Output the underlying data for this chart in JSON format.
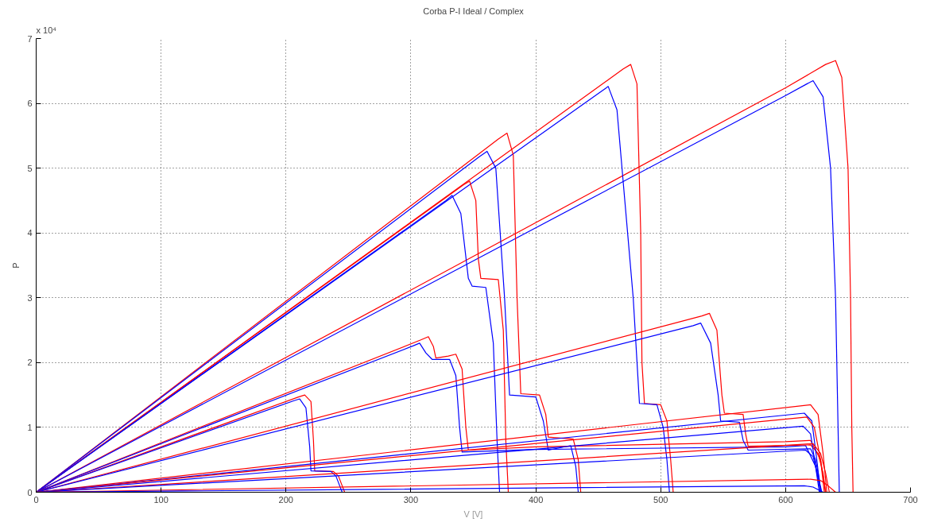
{
  "chart_data": {
    "type": "line",
    "title": "Corba P-I Ideal / Complex",
    "xlabel": "V [V]",
    "ylabel": "P",
    "annotations": [
      "x 10⁴"
    ],
    "xlim": [
      0,
      700
    ],
    "ylim": [
      0,
      7
    ],
    "xticks": [
      0,
      100,
      200,
      300,
      400,
      500,
      600,
      700
    ],
    "yticks": [
      0,
      1,
      2,
      3,
      4,
      5,
      6,
      7
    ],
    "grid": true,
    "marker": "none",
    "line_style": "solid",
    "series": [
      {
        "color": "#ff0000",
        "x": [
          0,
          600,
          632,
          640,
          645,
          650,
          652,
          653,
          654
        ],
        "values": [
          0,
          6.24,
          6.6,
          6.66,
          6.4,
          5,
          3,
          1,
          0
        ]
      },
      {
        "color": "#0000ff",
        "x": [
          0,
          600,
          617,
          622,
          630,
          636,
          640,
          643
        ],
        "values": [
          0,
          6.12,
          6.3,
          6.35,
          6.1,
          5,
          3,
          0
        ]
      },
      {
        "color": "#ff0000",
        "x": [
          0,
          470,
          476,
          481,
          484,
          485,
          487,
          500,
          505,
          508,
          510
        ],
        "values": [
          0,
          6.53,
          6.6,
          6.3,
          4,
          2,
          1.37,
          1.35,
          1.1,
          0.5,
          0
        ]
      },
      {
        "color": "#0000ff",
        "x": [
          0,
          452,
          458,
          465,
          478,
          483,
          497,
          502,
          505,
          507
        ],
        "values": [
          0,
          6.18,
          6.26,
          5.9,
          3,
          1.37,
          1.35,
          1.0,
          0.5,
          0
        ]
      },
      {
        "color": "#ff0000",
        "x": [
          0,
          370,
          377,
          382,
          385,
          388,
          403,
          408,
          410,
          430,
          434,
          436
        ],
        "values": [
          0,
          5.45,
          5.54,
          5.2,
          3,
          1.52,
          1.5,
          1.2,
          0.85,
          0.82,
          0.5,
          0
        ]
      },
      {
        "color": "#0000ff",
        "x": [
          0,
          355,
          361,
          368,
          375,
          379,
          400,
          406,
          410,
          428,
          432,
          434
        ],
        "values": [
          0,
          5.18,
          5.26,
          5.0,
          3,
          1.5,
          1.47,
          1.1,
          0.65,
          0.72,
          0.4,
          0
        ]
      },
      {
        "color": "#ff0000",
        "x": [
          0,
          342,
          347,
          352,
          354,
          356,
          370,
          374,
          376,
          378
        ],
        "values": [
          0,
          4.74,
          4.8,
          4.5,
          3.6,
          3.3,
          3.28,
          2.5,
          0.8,
          0
        ]
      },
      {
        "color": "#0000ff",
        "x": [
          0,
          328,
          333,
          340,
          346,
          349,
          360,
          366,
          369,
          371
        ],
        "values": [
          0,
          4.5,
          4.58,
          4.3,
          3.3,
          3.18,
          3.16,
          2.3,
          0.8,
          0
        ]
      },
      {
        "color": "#ff0000",
        "x": [
          0,
          308,
          314,
          318,
          320,
          330,
          336,
          341,
          344,
          346,
          400,
          600,
          620,
          628,
          632
        ],
        "values": [
          0,
          2.35,
          2.4,
          2.25,
          2.07,
          2.1,
          2.13,
          1.9,
          1.0,
          0.65,
          0.7,
          0.78,
          0.8,
          0.5,
          0
        ]
      },
      {
        "color": "#0000ff",
        "x": [
          0,
          302,
          307,
          312,
          317,
          331,
          336,
          339,
          341,
          400,
          600,
          616,
          624,
          628
        ],
        "values": [
          0,
          2.26,
          2.3,
          2.15,
          2.05,
          2.05,
          1.8,
          1.0,
          0.62,
          0.66,
          0.7,
          0.72,
          0.4,
          0
        ]
      },
      {
        "color": "#ff0000",
        "x": [
          0,
          210,
          215,
          220,
          222,
          223,
          238,
          242,
          245,
          247
        ],
        "values": [
          0,
          1.47,
          1.5,
          1.4,
          0.8,
          0.33,
          0.32,
          0.25,
          0.1,
          0
        ]
      },
      {
        "color": "#0000ff",
        "x": [
          0,
          206,
          211,
          216,
          219,
          220,
          236,
          240,
          243,
          245
        ],
        "values": [
          0,
          1.41,
          1.44,
          1.3,
          0.7,
          0.33,
          0.32,
          0.25,
          0.1,
          0
        ]
      },
      {
        "color": "#ff0000",
        "x": [
          0,
          533,
          539,
          545,
          549,
          551,
          566,
          568,
          570,
          620,
          626,
          630,
          632
        ],
        "values": [
          0,
          2.72,
          2.76,
          2.5,
          1.5,
          1.22,
          1.2,
          0.9,
          0.71,
          0.73,
          0.6,
          0.3,
          0
        ]
      },
      {
        "color": "#0000ff",
        "x": [
          0,
          526,
          532,
          540,
          546,
          548,
          563,
          566,
          570,
          620,
          624,
          627,
          628
        ],
        "values": [
          0,
          2.57,
          2.61,
          2.3,
          1.5,
          1.1,
          1.08,
          0.8,
          0.65,
          0.67,
          0.5,
          0.2,
          0
        ]
      },
      {
        "color": "#ff0000",
        "x": [
          0,
          620,
          626,
          630,
          633
        ],
        "values": [
          0,
          1.35,
          1.2,
          0.6,
          0
        ]
      },
      {
        "color": "#0000ff",
        "x": [
          0,
          615,
          621,
          625,
          628
        ],
        "values": [
          0,
          1.22,
          1.1,
          0.5,
          0
        ]
      },
      {
        "color": "#ff0000",
        "x": [
          0,
          617,
          623,
          628,
          631
        ],
        "values": [
          0,
          1.16,
          1.0,
          0.5,
          0
        ]
      },
      {
        "color": "#0000ff",
        "x": [
          0,
          614,
          620,
          624,
          627
        ],
        "values": [
          0,
          1.02,
          0.9,
          0.4,
          0
        ]
      },
      {
        "color": "#ff0000",
        "x": [
          0,
          622,
          628,
          632,
          635
        ],
        "values": [
          0,
          0.75,
          0.6,
          0.3,
          0
        ]
      },
      {
        "color": "#0000ff",
        "x": [
          0,
          616,
          622,
          626,
          629
        ],
        "values": [
          0,
          0.65,
          0.55,
          0.25,
          0
        ]
      },
      {
        "color": "#ff0000",
        "x": [
          0,
          620,
          628,
          634,
          640
        ],
        "values": [
          0,
          0.2,
          0.18,
          0.1,
          0
        ]
      },
      {
        "color": "#0000ff",
        "x": [
          0,
          615,
          622,
          626,
          630
        ],
        "values": [
          0,
          0.1,
          0.08,
          0.04,
          0
        ]
      }
    ]
  }
}
